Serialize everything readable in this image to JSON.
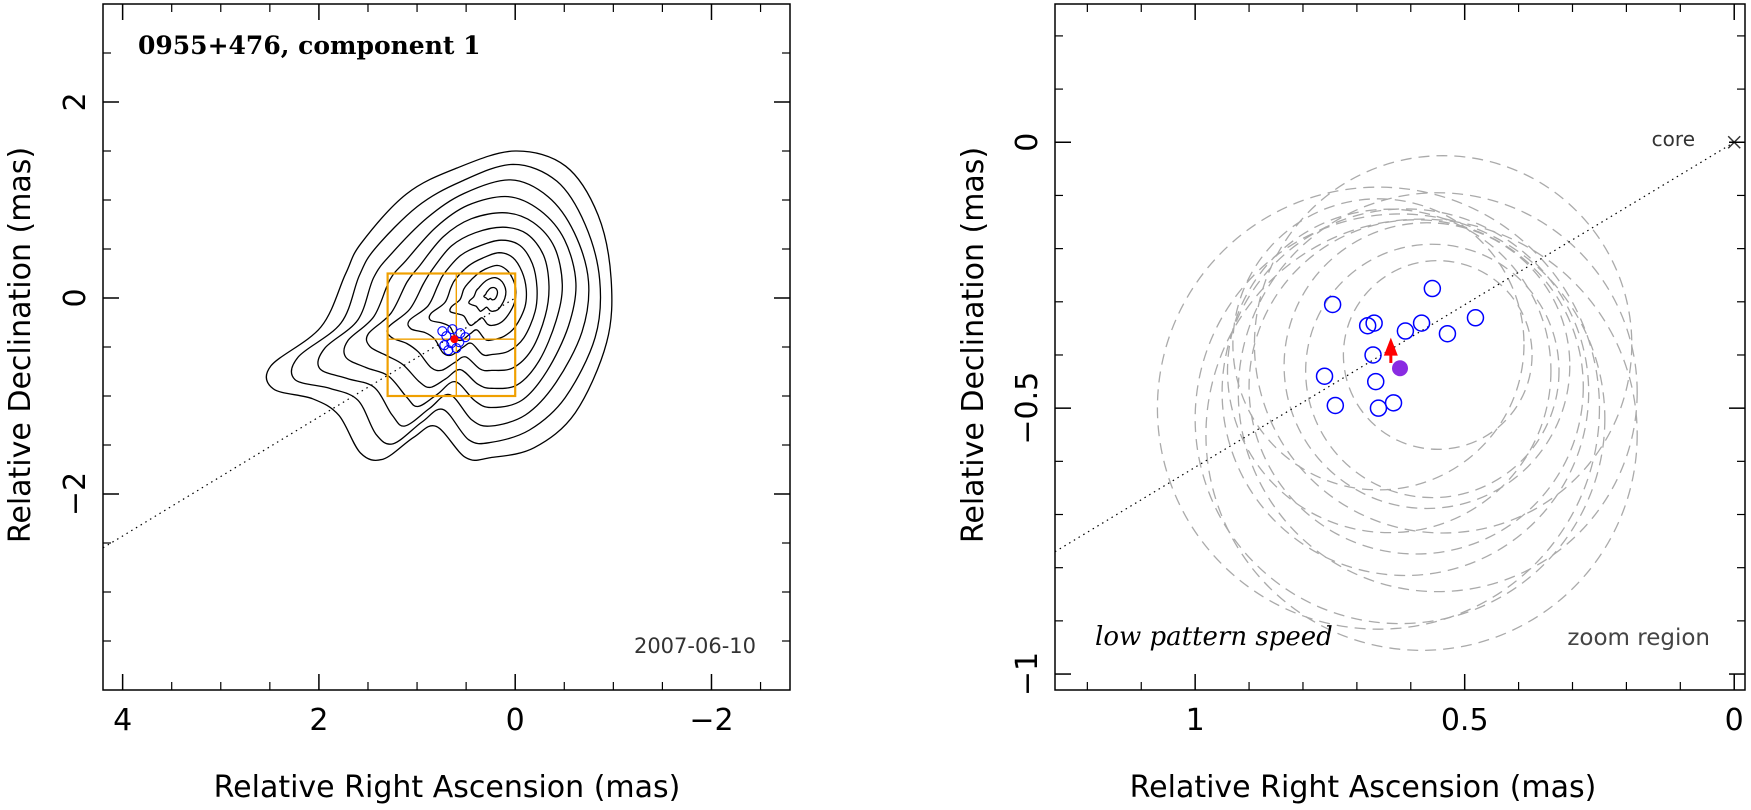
{
  "chart_data": [
    {
      "type": "contour",
      "title": "0955+476, component 1",
      "date_label": "2007-06-10",
      "xlabel": "Relative Right Ascension (mas)",
      "ylabel": "Relative Declination (mas)",
      "xlim": [
        4.2,
        -2.8
      ],
      "ylim": [
        -4.0,
        3.0
      ],
      "xticks": [
        4,
        2,
        0,
        -2
      ],
      "xtick_labels": [
        "4",
        "2",
        "0",
        "−2"
      ],
      "yticks": [
        2,
        0,
        -2
      ],
      "ytick_labels": [
        "2",
        "0",
        "−2"
      ],
      "contour_levels": 11,
      "jet_axis": {
        "from": [
          4.2,
          -2.55
        ],
        "to": [
          0.0,
          0.0
        ]
      },
      "zoom_boxes": [
        {
          "x": [
            1.3,
            0.0
          ],
          "y": [
            -1.0,
            0.25
          ]
        },
        {
          "x": [
            1.3,
            0.6
          ],
          "y": [
            -1.0,
            -0.42
          ]
        },
        {
          "x": [
            0.6,
            0.0
          ],
          "y": [
            -0.42,
            0.25
          ]
        }
      ],
      "component_position": {
        "x": 0.62,
        "y": -0.42
      },
      "accent_color": "#f0a000",
      "marker_color": "#0000ff",
      "highlight_color": "#ff0000"
    },
    {
      "type": "scatter",
      "annotation": "low pattern speed",
      "region_label": "zoom region",
      "core_label": "core",
      "xlabel": "Relative Right Ascension (mas)",
      "ylabel": "Relative Declination (mas)",
      "xlim": [
        1.26,
        -0.02
      ],
      "ylim": [
        -1.03,
        0.26
      ],
      "xticks": [
        1,
        0.5,
        0
      ],
      "xtick_labels": [
        "1",
        "0.5",
        "0"
      ],
      "yticks": [
        0,
        -0.5,
        -1
      ],
      "ytick_labels": [
        "0",
        "−0.5",
        "−1"
      ],
      "core": {
        "x": 0.0,
        "y": 0.0
      },
      "jet_axis": {
        "from": [
          1.26,
          -0.77
        ],
        "to": [
          0.0,
          0.0
        ]
      },
      "series": [
        {
          "name": "component positions",
          "x": [
            0.745,
            0.68,
            0.668,
            0.56,
            0.58,
            0.532,
            0.48,
            0.61,
            0.67,
            0.665,
            0.76,
            0.74,
            0.66,
            0.632
          ],
          "y": [
            -0.305,
            -0.345,
            -0.34,
            -0.275,
            -0.34,
            -0.36,
            -0.33,
            -0.355,
            -0.4,
            -0.45,
            -0.44,
            -0.495,
            -0.5,
            -0.49
          ]
        },
        {
          "name": "mean position",
          "x": [
            0.62
          ],
          "y": [
            -0.425
          ]
        },
        {
          "name": "pattern speed vector",
          "from": [
            0.637,
            -0.415
          ],
          "to": [
            0.637,
            -0.375
          ]
        }
      ],
      "uncertainty_circles": [
        {
          "x": 0.55,
          "y": -0.4,
          "r": 0.175
        },
        {
          "x": 0.56,
          "y": -0.43,
          "r": 0.235
        },
        {
          "x": 0.57,
          "y": -0.42,
          "r": 0.265
        },
        {
          "x": 0.59,
          "y": -0.46,
          "r": 0.31
        },
        {
          "x": 0.61,
          "y": -0.47,
          "r": 0.34
        },
        {
          "x": 0.64,
          "y": -0.43,
          "r": 0.3
        },
        {
          "x": 0.62,
          "y": -0.52,
          "r": 0.38
        },
        {
          "x": 0.58,
          "y": -0.55,
          "r": 0.4
        },
        {
          "x": 0.66,
          "y": -0.5,
          "r": 0.41
        },
        {
          "x": 0.55,
          "y": -0.47,
          "r": 0.37
        },
        {
          "x": 0.54,
          "y": -0.38,
          "r": 0.35
        },
        {
          "x": 0.66,
          "y": -0.38,
          "r": 0.27
        }
      ],
      "point_color": "#0000ff",
      "mean_color": "#8a2be2",
      "vector_color": "#ff0000",
      "circle_color": "#aaaaaa"
    }
  ]
}
